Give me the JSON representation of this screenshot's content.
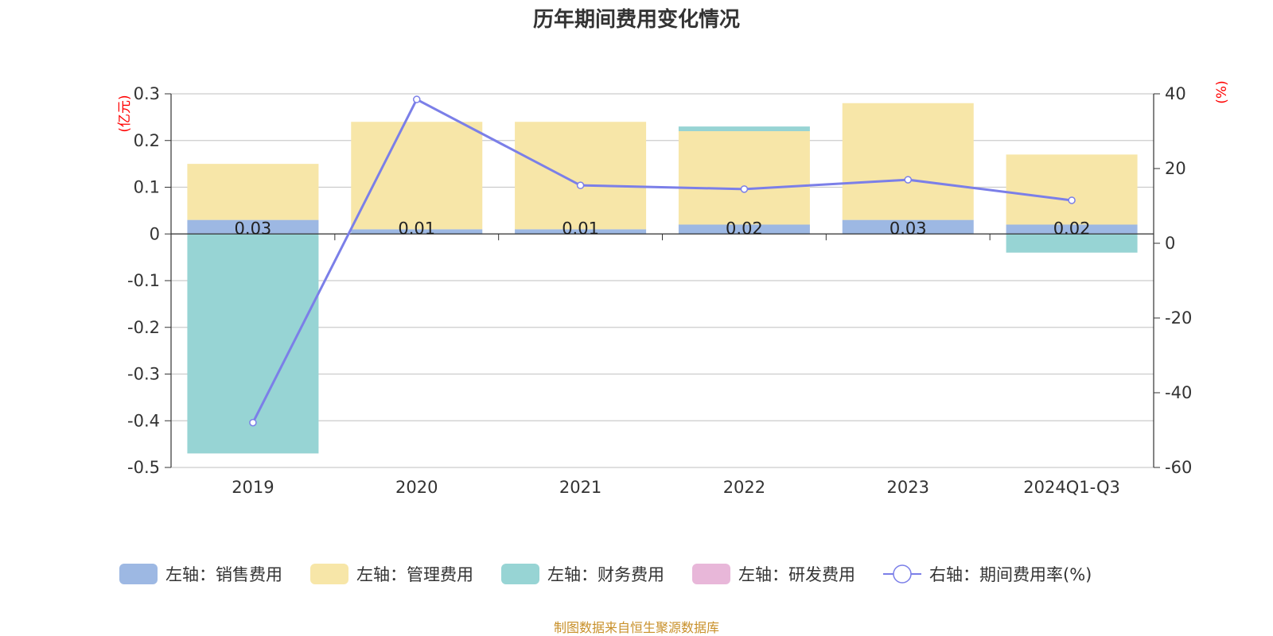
{
  "chart_data": {
    "type": "bar",
    "stacked": true,
    "title": "历年期间费用变化情况",
    "categories": [
      "2019",
      "2020",
      "2021",
      "2022",
      "2023",
      "2024Q1-Q3"
    ],
    "left_axis": {
      "unit": "(亿元)",
      "ylim": [
        -0.5,
        0.3
      ],
      "ticks": [
        0.3,
        0.2,
        0.1,
        0,
        -0.1,
        -0.2,
        -0.3,
        -0.4,
        -0.5
      ]
    },
    "right_axis": {
      "unit": "(%)",
      "ylim": [
        -60,
        40
      ],
      "ticks": [
        40,
        20,
        0,
        -20,
        -40,
        -60
      ]
    },
    "series": [
      {
        "name": "左轴：销售费用",
        "axis": "left",
        "color": "#9db8e3",
        "values": [
          0.03,
          0.01,
          0.01,
          0.02,
          0.03,
          0.02
        ],
        "labels": [
          "0.03",
          "0.01",
          "0.01",
          "0.02",
          "0.03",
          "0.02"
        ]
      },
      {
        "name": "左轴：管理费用",
        "axis": "left",
        "color": "#f7e6a8",
        "values": [
          0.12,
          0.23,
          0.23,
          0.2,
          0.25,
          0.15
        ]
      },
      {
        "name": "左轴：财务费用",
        "axis": "left",
        "color": "#97d4d4",
        "values": [
          -0.47,
          0.0,
          0.0,
          0.01,
          0.0,
          -0.04
        ]
      },
      {
        "name": "左轴：研发费用",
        "axis": "left",
        "color": "#e8b7d9",
        "values": [
          0,
          0,
          0,
          0,
          0,
          0
        ]
      },
      {
        "name": "右轴：期间费用率(%)",
        "axis": "right",
        "type": "line",
        "color": "#7b7fe8",
        "values": [
          -48,
          38.5,
          15.5,
          14.5,
          17,
          11.5
        ]
      }
    ],
    "legend_position": "bottom",
    "grid": true
  },
  "footer": {
    "source": "制图数据来自恒生聚源数据库"
  }
}
